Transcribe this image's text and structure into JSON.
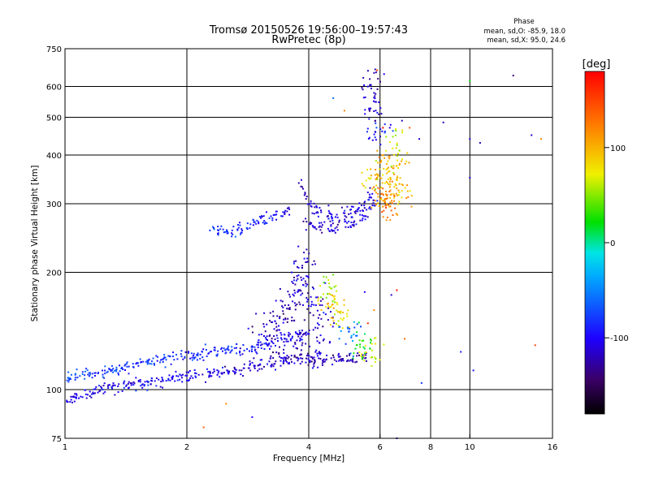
{
  "chart_data": {
    "type": "scatter",
    "title": "Tromsø 20150526 19:56:00–19:57:43",
    "subtitle": "RwPretec (8p)",
    "xlabel": "Frequency [MHz]",
    "ylabel": "Stationary phase Virtual Height [km]",
    "x_scale": "log",
    "y_scale": "log",
    "xlim": [
      1,
      16
    ],
    "ylim": [
      75,
      750
    ],
    "x_ticks": [
      "1",
      "2",
      "4",
      "6",
      "8",
      "10",
      "16"
    ],
    "y_ticks": [
      "75",
      "100",
      "200",
      "300",
      "400",
      "500",
      "600",
      "750"
    ],
    "x_gridlines": [
      2,
      4,
      6,
      8,
      10
    ],
    "y_gridlines": [
      100,
      200,
      300,
      400,
      500,
      600
    ],
    "color_quantity": "Phase [deg]",
    "legend": {
      "title": "Phase",
      "line1": "mean, sd,O: -85.9, 18.0",
      "line2": "mean, sd,X:  95.0, 24.6"
    },
    "colorbar": {
      "label": "[deg]",
      "range": [
        -180,
        180
      ],
      "tick_labels": [
        "100",
        "0",
        "-100"
      ],
      "tick_values": [
        100,
        0,
        -100
      ]
    },
    "series": [
      {
        "type": "band",
        "points": [
          [
            1.0,
            94,
            -110
          ],
          [
            1.1,
            97,
            -105
          ],
          [
            1.2,
            100,
            -100
          ],
          [
            1.3,
            101,
            -100
          ],
          [
            1.45,
            103,
            -98
          ],
          [
            1.6,
            104,
            -98
          ],
          [
            1.8,
            106,
            -100
          ],
          [
            2.0,
            108,
            -105
          ],
          [
            2.2,
            109,
            -105
          ],
          [
            2.4,
            110,
            -108
          ],
          [
            2.6,
            112,
            -110
          ],
          [
            2.8,
            114,
            -112
          ],
          [
            3.0,
            116,
            -115
          ],
          [
            3.3,
            118,
            -118
          ],
          [
            3.6,
            119,
            -120
          ],
          [
            4.0,
            119,
            -120
          ],
          [
            4.4,
            119,
            -122
          ],
          [
            4.8,
            120,
            -122
          ],
          [
            5.2,
            120,
            -122
          ],
          [
            5.6,
            121,
            -122
          ]
        ]
      },
      {
        "type": "band",
        "points": [
          [
            1.0,
            107,
            -70
          ],
          [
            1.1,
            109,
            -72
          ],
          [
            1.2,
            111,
            -75
          ],
          [
            1.35,
            113,
            -78
          ],
          [
            1.5,
            116,
            -80
          ],
          [
            1.7,
            119,
            -82
          ],
          [
            1.9,
            121,
            -84
          ],
          [
            2.1,
            123,
            -86
          ],
          [
            2.4,
            125,
            -88
          ],
          [
            2.7,
            127,
            -90
          ],
          [
            3.0,
            130,
            -95
          ],
          [
            3.3,
            133,
            -100
          ],
          [
            3.6,
            136,
            -105
          ],
          [
            4.0,
            140,
            -110
          ]
        ]
      },
      {
        "type": "cloud",
        "points": [
          [
            3.1,
            140,
            -118
          ],
          [
            3.3,
            150,
            -120
          ],
          [
            3.5,
            160,
            -122
          ],
          [
            3.7,
            175,
            -118
          ],
          [
            3.8,
            190,
            -115
          ],
          [
            3.9,
            210,
            -112
          ],
          [
            4.1,
            170,
            -110
          ],
          [
            4.3,
            150,
            -108
          ],
          [
            4.5,
            180,
            60
          ],
          [
            4.6,
            165,
            90
          ],
          [
            4.8,
            155,
            80
          ],
          [
            5.0,
            140,
            -60
          ],
          [
            5.4,
            130,
            20
          ],
          [
            5.7,
            122,
            60
          ],
          [
            3.4,
            125,
            -115
          ],
          [
            3.9,
            130,
            -112
          ],
          [
            4.2,
            125,
            -110
          ]
        ]
      },
      {
        "type": "band",
        "points": [
          [
            3.8,
            345,
            -112
          ],
          [
            3.95,
            310,
            -114
          ],
          [
            4.05,
            295,
            -114
          ],
          [
            4.3,
            285,
            -112
          ],
          [
            4.7,
            280,
            -110
          ],
          [
            5.1,
            285,
            -108
          ],
          [
            5.5,
            300,
            -105
          ],
          [
            5.8,
            330,
            -100
          ]
        ]
      },
      {
        "type": "band",
        "points": [
          [
            3.9,
            270,
            -115
          ],
          [
            4.1,
            262,
            -116
          ],
          [
            4.4,
            258,
            -116
          ],
          [
            4.8,
            262,
            -112
          ],
          [
            5.2,
            270,
            -108
          ],
          [
            5.6,
            285,
            -105
          ],
          [
            5.9,
            305,
            -100
          ]
        ]
      },
      {
        "type": "cloud",
        "points": [
          [
            5.8,
            350,
            80
          ],
          [
            6.0,
            320,
            110
          ],
          [
            6.2,
            300,
            120
          ],
          [
            6.4,
            330,
            100
          ],
          [
            6.6,
            360,
            90
          ],
          [
            6.8,
            320,
            95
          ],
          [
            6.1,
            380,
            110
          ],
          [
            6.5,
            420,
            70
          ],
          [
            5.9,
            450,
            -90
          ],
          [
            5.8,
            520,
            -110
          ],
          [
            5.7,
            600,
            -120
          ],
          [
            6.3,
            300,
            120
          ]
        ]
      },
      {
        "type": "band",
        "points": [
          [
            2.3,
            258,
            -75
          ],
          [
            2.45,
            255,
            -80
          ],
          [
            2.6,
            252,
            -85
          ],
          [
            2.8,
            262,
            -80
          ],
          [
            3.0,
            270,
            -90
          ],
          [
            3.2,
            276,
            -95
          ],
          [
            3.4,
            282,
            -100
          ],
          [
            3.6,
            290,
            -105
          ]
        ]
      },
      {
        "type": "scatter",
        "points": [
          [
            12.8,
            640,
            -140
          ],
          [
            14.2,
            450,
            -112
          ],
          [
            15.0,
            440,
            120
          ],
          [
            10.6,
            430,
            -118
          ],
          [
            8.6,
            485,
            -120
          ],
          [
            10.0,
            440,
            -118
          ],
          [
            10.0,
            350,
            -118
          ],
          [
            10.0,
            620,
            20
          ],
          [
            5.9,
            660,
            150
          ],
          [
            5.8,
            650,
            -125
          ],
          [
            6.8,
            490,
            -120
          ],
          [
            7.1,
            470,
            140
          ],
          [
            7.5,
            440,
            -115
          ],
          [
            2.2,
            80,
            140
          ],
          [
            2.5,
            92,
            120
          ],
          [
            2.9,
            85,
            -100
          ],
          [
            7.6,
            104,
            -80
          ],
          [
            9.5,
            125,
            -90
          ],
          [
            10.2,
            112,
            -95
          ],
          [
            14.5,
            130,
            150
          ],
          [
            5.5,
            178,
            -100
          ],
          [
            6.4,
            175,
            -110
          ],
          [
            6.6,
            180,
            170
          ],
          [
            6.9,
            135,
            130
          ],
          [
            5.8,
            160,
            120
          ],
          [
            5.6,
            148,
            160
          ],
          [
            6.1,
            470,
            180
          ],
          [
            6.6,
            75,
            -120
          ],
          [
            4.6,
            560,
            -60
          ],
          [
            4.9,
            520,
            120
          ]
        ]
      }
    ]
  }
}
